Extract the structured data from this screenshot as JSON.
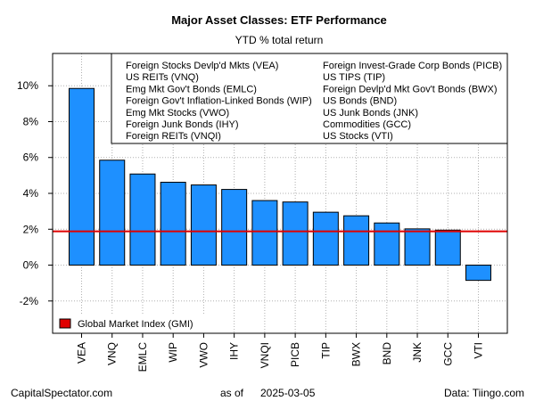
{
  "chart_data": {
    "type": "bar",
    "title": "Major Asset Classes: ETF Performance",
    "subtitle": "YTD % total return",
    "categories": [
      "VEA",
      "VNQ",
      "EMLC",
      "WIP",
      "VWO",
      "IHY",
      "VNQI",
      "PICB",
      "TIP",
      "BWX",
      "BND",
      "JNK",
      "GCC",
      "VTI"
    ],
    "values": [
      9.85,
      5.85,
      5.08,
      4.62,
      4.47,
      4.22,
      3.6,
      3.52,
      2.95,
      2.75,
      2.35,
      2.02,
      1.95,
      -0.85
    ],
    "bar_color": "#1E90FF",
    "ylim": [
      -3.8,
      11.8
    ],
    "yticks": [
      -2,
      0,
      2,
      4,
      6,
      8,
      10
    ],
    "ytick_labels": [
      "-2%",
      "0%",
      "2%",
      "4%",
      "6%",
      "8%",
      "10%"
    ],
    "grid": true,
    "reference_line": {
      "label": "Global Market Index (GMI)",
      "value": 1.88,
      "color": "#E00000"
    },
    "legend_ticker_names": [
      "Foreign Stocks Devlp'd Mkts (VEA)",
      "US REITs (VNQ)",
      "Emg Mkt Gov't Bonds (EMLC)",
      "Foreign Gov't Inflation-Linked Bonds (WIP)",
      "Emg Mkt Stocks (VWO)",
      "Foreign Junk Bonds (IHY)",
      "Foreign REITs (VNQI)",
      "Foreign Invest-Grade Corp Bonds (PICB)",
      "US TIPS (TIP)",
      "Foreign Devlp'd Mkt Gov't Bonds (BWX)",
      "US Bonds (BND)",
      "US Junk Bonds (JNK)",
      "Commodities (GCC)",
      "US Stocks (VTI)"
    ],
    "legend_placement": "top-right"
  },
  "footer": {
    "source_left": "CapitalSpectator.com",
    "as_of_label": "as of",
    "date": "2025-03-05",
    "data_credit": "Data: Tiingo.com"
  }
}
